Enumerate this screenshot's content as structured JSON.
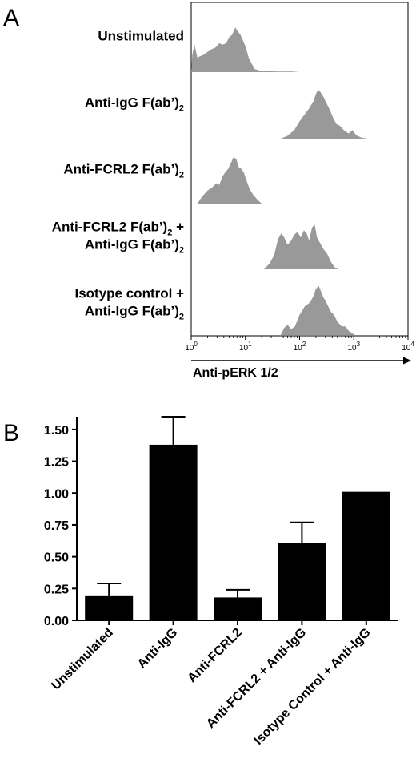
{
  "figure": {
    "panel_a_letter": "A",
    "panel_b_letter": "B"
  },
  "chart_data": [
    {
      "panel": "A",
      "type": "area",
      "xscale": "log",
      "xlim": [
        1,
        10000
      ],
      "xticks": [
        {
          "base": "10",
          "exp": "0"
        },
        {
          "base": "10",
          "exp": "1"
        },
        {
          "base": "10",
          "exp": "2"
        },
        {
          "base": "10",
          "exp": "3"
        },
        {
          "base": "10",
          "exp": "4"
        }
      ],
      "xlabel": "Anti-pERK 1/2",
      "fill_color": "#999999",
      "series": [
        {
          "label_lines": [
            {
              "text": "Unstimulated",
              "sub": "",
              "suffix": ""
            }
          ],
          "points": [
            [
              1.0,
              0.0
            ],
            [
              1.05,
              0.6
            ],
            [
              1.15,
              0.95
            ],
            [
              1.3,
              0.5
            ],
            [
              1.45,
              0.55
            ],
            [
              1.7,
              0.6
            ],
            [
              2.0,
              0.7
            ],
            [
              2.4,
              0.8
            ],
            [
              2.8,
              0.85
            ],
            [
              3.3,
              1.0
            ],
            [
              3.8,
              0.95
            ],
            [
              4.4,
              1.0
            ],
            [
              5.0,
              1.2
            ],
            [
              5.7,
              1.3
            ],
            [
              6.5,
              1.55
            ],
            [
              7.3,
              1.4
            ],
            [
              8.1,
              1.3
            ],
            [
              9.0,
              1.1
            ],
            [
              10.0,
              0.9
            ],
            [
              11.5,
              0.5
            ],
            [
              13.0,
              0.3
            ],
            [
              15.0,
              0.1
            ],
            [
              20.0,
              0.04
            ],
            [
              40.0,
              0.02
            ],
            [
              70.0,
              0.02
            ],
            [
              100.0,
              0.0
            ]
          ]
        },
        {
          "label_lines": [
            {
              "text": "Anti-IgG F(ab’)",
              "sub": "2",
              "suffix": ""
            }
          ],
          "points": [
            [
              45.0,
              0.0
            ],
            [
              60.0,
              0.1
            ],
            [
              80.0,
              0.3
            ],
            [
              100.0,
              0.6
            ],
            [
              125.0,
              0.85
            ],
            [
              150.0,
              1.05
            ],
            [
              180.0,
              1.3
            ],
            [
              200.0,
              1.55
            ],
            [
              220.0,
              1.7
            ],
            [
              245.0,
              1.6
            ],
            [
              275.0,
              1.45
            ],
            [
              300.0,
              1.3
            ],
            [
              330.0,
              1.15
            ],
            [
              370.0,
              0.95
            ],
            [
              420.0,
              0.7
            ],
            [
              480.0,
              0.5
            ],
            [
              550.0,
              0.45
            ],
            [
              650.0,
              0.3
            ],
            [
              800.0,
              0.18
            ],
            [
              950.0,
              0.3
            ],
            [
              1100.0,
              0.12
            ],
            [
              1400.0,
              0.03
            ],
            [
              1800.0,
              0.0
            ]
          ]
        },
        {
          "label_lines": [
            {
              "text": "Anti-FCRL2 F(ab’)",
              "sub": "2",
              "suffix": ""
            }
          ],
          "points": [
            [
              1.3,
              0.0
            ],
            [
              1.6,
              0.25
            ],
            [
              2.0,
              0.45
            ],
            [
              2.4,
              0.55
            ],
            [
              2.9,
              0.7
            ],
            [
              3.3,
              0.65
            ],
            [
              3.8,
              0.95
            ],
            [
              4.3,
              1.1
            ],
            [
              4.8,
              1.2
            ],
            [
              5.4,
              1.4
            ],
            [
              6.0,
              1.6
            ],
            [
              6.8,
              1.55
            ],
            [
              7.6,
              1.25
            ],
            [
              8.5,
              1.2
            ],
            [
              9.5,
              1.05
            ],
            [
              10.5,
              0.8
            ],
            [
              12.0,
              0.5
            ],
            [
              14.0,
              0.3
            ],
            [
              17.0,
              0.12
            ],
            [
              20.0,
              0.0
            ]
          ]
        },
        {
          "label_lines": [
            {
              "text": "Anti-FCRL2 F(ab’)",
              "sub": "2",
              "suffix": " +"
            },
            {
              "text": "Anti-IgG F(ab’)",
              "sub": "2",
              "suffix": ""
            }
          ],
          "points": [
            [
              22.0,
              0.0
            ],
            [
              28.0,
              0.2
            ],
            [
              34.0,
              0.5
            ],
            [
              40.0,
              1.05
            ],
            [
              46.0,
              1.25
            ],
            [
              52.0,
              1.1
            ],
            [
              60.0,
              0.85
            ],
            [
              70.0,
              1.0
            ],
            [
              80.0,
              1.2
            ],
            [
              92.0,
              1.3
            ],
            [
              105.0,
              1.1
            ],
            [
              120.0,
              1.35
            ],
            [
              135.0,
              1.25
            ],
            [
              150.0,
              1.0
            ],
            [
              170.0,
              1.45
            ],
            [
              190.0,
              1.55
            ],
            [
              210.0,
              1.1
            ],
            [
              240.0,
              0.9
            ],
            [
              275.0,
              0.7
            ],
            [
              320.0,
              0.55
            ],
            [
              380.0,
              0.25
            ],
            [
              450.0,
              0.05
            ],
            [
              520.0,
              0.0
            ]
          ]
        },
        {
          "label_lines": [
            {
              "text": "Isotype control",
              "sub": "",
              "suffix": " +"
            },
            {
              "text": "Anti-IgG F(ab’)",
              "sub": "2",
              "suffix": ""
            }
          ],
          "points": [
            [
              45.0,
              0.0
            ],
            [
              52.0,
              0.25
            ],
            [
              60.0,
              0.35
            ],
            [
              70.0,
              0.2
            ],
            [
              82.0,
              0.3
            ],
            [
              100.0,
              0.7
            ],
            [
              125.0,
              1.0
            ],
            [
              150.0,
              1.1
            ],
            [
              175.0,
              1.3
            ],
            [
              200.0,
              1.6
            ],
            [
              225.0,
              1.7
            ],
            [
              250.0,
              1.5
            ],
            [
              275.0,
              1.3
            ],
            [
              300.0,
              1.2
            ],
            [
              335.0,
              1.0
            ],
            [
              380.0,
              0.8
            ],
            [
              430.0,
              0.7
            ],
            [
              500.0,
              0.45
            ],
            [
              600.0,
              0.3
            ],
            [
              700.0,
              0.3
            ],
            [
              800.0,
              0.15
            ],
            [
              950.0,
              0.05
            ],
            [
              1050.0,
              0.0
            ]
          ]
        }
      ]
    },
    {
      "panel": "B",
      "type": "bar",
      "categories": [
        "Unstimulated",
        "Anti-IgG",
        "Anti-FCRL2",
        "Anti-FCRL2 + Anti-IgG",
        "Isotype Control + Anti-IgG"
      ],
      "values": [
        0.19,
        1.38,
        0.18,
        0.61,
        1.01
      ],
      "errors": [
        0.1,
        0.22,
        0.06,
        0.16,
        0.0
      ],
      "ylim": [
        0,
        1.6
      ],
      "yticks": [
        "0.00",
        "0.25",
        "0.50",
        "0.75",
        "1.00",
        "1.25",
        "1.50"
      ],
      "bar_color": "#000000"
    }
  ]
}
